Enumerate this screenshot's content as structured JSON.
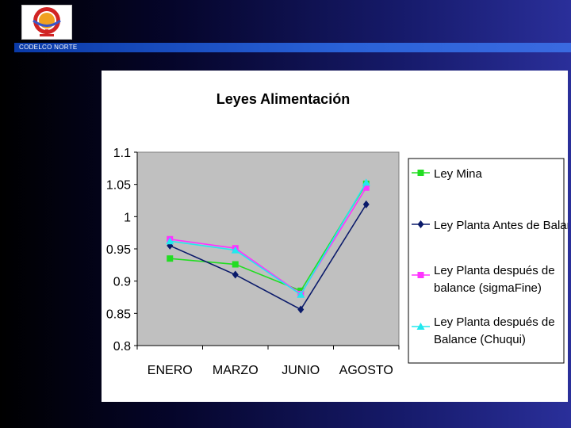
{
  "header": {
    "brand_label": "CODELCO NORTE",
    "logo_icon": "codelco-logo-icon"
  },
  "colors": {
    "plot_background": "#c0c0c0",
    "ley_mina": "#22dd22",
    "ley_planta_antes": "#0a1a6a",
    "ley_planta_sigmafine": "#ff33ff",
    "ley_planta_chuqui": "#22e8ee"
  },
  "chart_data": {
    "type": "line",
    "title": "Leyes Alimentación",
    "xlabel": "",
    "ylabel": "",
    "categories": [
      "ENERO",
      "MARZO",
      "JUNIO",
      "AGOSTO"
    ],
    "ylim": [
      0.8,
      1.1
    ],
    "yticks": [
      "1.1",
      "1.05",
      "1",
      "0.95",
      "0.9",
      "0.85",
      "0.8"
    ],
    "grid": false,
    "legend_position": "right",
    "series": [
      {
        "name": "Ley Mina",
        "marker": "square",
        "values": [
          0.935,
          0.926,
          0.885,
          1.051
        ]
      },
      {
        "name": "Ley Planta Antes de Balance",
        "marker": "diamond",
        "values": [
          0.955,
          0.91,
          0.856,
          1.019
        ]
      },
      {
        "name": "Ley Planta después de balance (sigmaFine)",
        "legend_lines": [
          "Ley Planta después de",
          "balance (sigmaFine)"
        ],
        "marker": "square",
        "values": [
          0.965,
          0.951,
          0.88,
          1.045
        ]
      },
      {
        "name": "Ley Planta después de Balance (Chuqui)",
        "legend_lines": [
          "Ley Planta después de",
          "Balance (Chuqui)"
        ],
        "marker": "triangle",
        "values": [
          0.962,
          0.948,
          0.879,
          1.053
        ]
      }
    ]
  }
}
